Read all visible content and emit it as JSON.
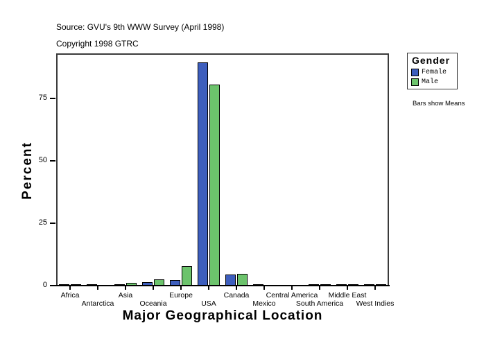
{
  "header": {
    "source": "Source: GVU's 9th WWW Survey (April 1998)",
    "copyright": "Copyright 1998 GTRC"
  },
  "legend": {
    "title": "Gender",
    "items": [
      {
        "label": "Female",
        "color": "#3d5ebd"
      },
      {
        "label": "Male",
        "color": "#6cc36c"
      }
    ]
  },
  "note": "Bars show Means",
  "chart_data": {
    "type": "bar",
    "title": "",
    "xlabel": "Major Geographical Location",
    "ylabel": "Percent",
    "ylim": [
      0,
      93
    ],
    "yticks": [
      0,
      25,
      50,
      75
    ],
    "grid": false,
    "legend_position": "right",
    "categories": [
      "Africa",
      "Antarctica",
      "Asia",
      "Oceania",
      "Europe",
      "USA",
      "Canada",
      "Mexico",
      "Central America",
      "South America",
      "Middle East",
      "West Indies"
    ],
    "series": [
      {
        "name": "Female",
        "color": "#3d5ebd",
        "values": [
          0.2,
          0.1,
          0.4,
          1.4,
          2.2,
          89.4,
          4.4,
          0.2,
          0.0,
          0.2,
          0.2,
          0.2
        ]
      },
      {
        "name": "Male",
        "color": "#6cc36c",
        "values": [
          0.2,
          0.0,
          1.2,
          2.6,
          7.9,
          80.6,
          4.8,
          0.0,
          0.0,
          0.5,
          0.5,
          0.2
        ]
      }
    ]
  }
}
